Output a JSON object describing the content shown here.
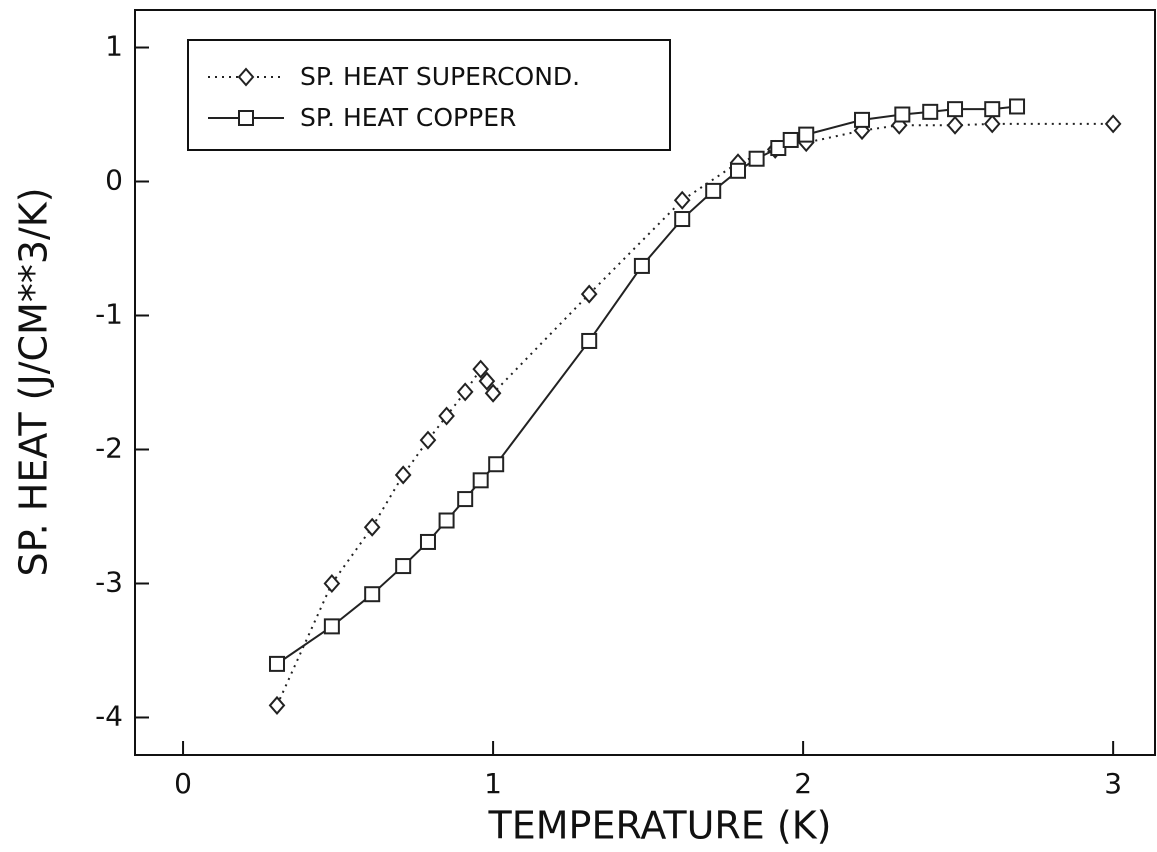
{
  "chart_data": {
    "type": "line",
    "x_label": "TEMPERATURE (K)",
    "y_label": "SP. HEAT (J/CM**3/K)",
    "xlim": [
      -0.155,
      3.135
    ],
    "ylim": [
      -4.28,
      1.28
    ],
    "xticks": [
      0,
      1,
      2,
      3
    ],
    "yticks": [
      -4,
      -3,
      -2,
      -1,
      0,
      1
    ],
    "legend": "upper left",
    "series": [
      {
        "name": "SP. HEAT SUPERCOND.",
        "color": "#222222",
        "line_style": "dotted",
        "marker": "diamond",
        "x": [
          0.303,
          0.48,
          0.61,
          0.71,
          0.79,
          0.85,
          0.91,
          0.96,
          0.98,
          1.0,
          1.31,
          1.61,
          1.79,
          1.91,
          2.01,
          2.19,
          2.31,
          2.49,
          2.61,
          3.0
        ],
        "values": [
          -3.91,
          -3.0,
          -2.58,
          -2.19,
          -1.93,
          -1.75,
          -1.57,
          -1.4,
          -1.49,
          -1.58,
          -0.84,
          -0.14,
          0.14,
          0.24,
          0.29,
          0.38,
          0.42,
          0.42,
          0.43,
          0.43
        ]
      },
      {
        "name": "SP. HEAT COPPER",
        "color": "#222222",
        "line_style": "solid",
        "marker": "square",
        "x": [
          0.303,
          0.48,
          0.61,
          0.71,
          0.79,
          0.85,
          0.91,
          0.96,
          1.01,
          1.31,
          1.48,
          1.61,
          1.71,
          1.79,
          1.85,
          1.92,
          1.96,
          2.01,
          2.19,
          2.32,
          2.41,
          2.49,
          2.61,
          2.69
        ],
        "values": [
          -3.6,
          -3.32,
          -3.08,
          -2.87,
          -2.69,
          -2.53,
          -2.37,
          -2.23,
          -2.11,
          -1.19,
          -0.63,
          -0.28,
          -0.07,
          0.08,
          0.17,
          0.25,
          0.31,
          0.35,
          0.46,
          0.5,
          0.52,
          0.54,
          0.54,
          0.56
        ]
      }
    ]
  }
}
